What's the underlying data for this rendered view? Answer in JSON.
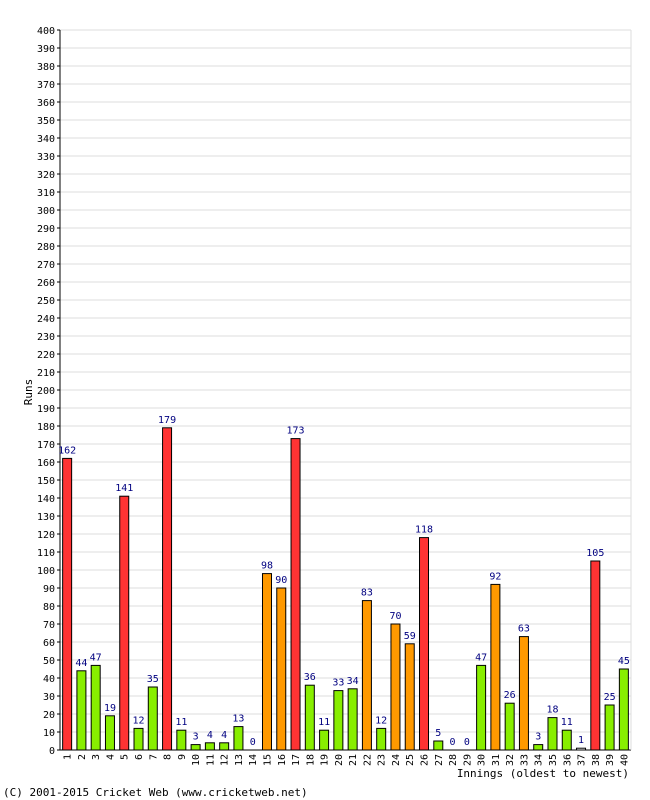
{
  "chart_data": {
    "type": "bar",
    "ylabel": "Runs",
    "xlabel": "Innings (oldest to newest)",
    "ylim": [
      0,
      400
    ],
    "y_tick_step": 10,
    "grid": true,
    "categories": [
      "1",
      "2",
      "3",
      "4",
      "5",
      "6",
      "7",
      "8",
      "9",
      "10",
      "11",
      "12",
      "13",
      "14",
      "15",
      "16",
      "17",
      "18",
      "19",
      "20",
      "21",
      "22",
      "23",
      "24",
      "25",
      "26",
      "27",
      "28",
      "29",
      "30",
      "31",
      "32",
      "33",
      "34",
      "35",
      "36",
      "37",
      "38",
      "39",
      "40"
    ],
    "values": [
      162,
      44,
      47,
      19,
      141,
      12,
      35,
      179,
      11,
      3,
      4,
      4,
      13,
      0,
      98,
      90,
      173,
      36,
      11,
      33,
      34,
      83,
      12,
      70,
      59,
      118,
      5,
      0,
      0,
      47,
      92,
      26,
      63,
      3,
      18,
      11,
      1,
      105,
      25,
      45
    ],
    "not_out": [
      false,
      false,
      false,
      false,
      false,
      false,
      false,
      false,
      false,
      false,
      false,
      false,
      false,
      false,
      false,
      false,
      false,
      false,
      false,
      false,
      false,
      false,
      false,
      false,
      false,
      false,
      false,
      false,
      false,
      false,
      false,
      false,
      false,
      false,
      false,
      false,
      true,
      false,
      false,
      false
    ],
    "colors": {
      "century": "#ff3333",
      "fifty": "#ff9900",
      "other": "#88ee00",
      "not_out": "#ffffff",
      "bar_stroke": "#000000",
      "value_label": "#000080",
      "grid": "#dddddd",
      "axis": "#000000"
    }
  },
  "footer": {
    "copyright": "(C) 2001-2015 Cricket Web (www.cricketweb.net)"
  }
}
